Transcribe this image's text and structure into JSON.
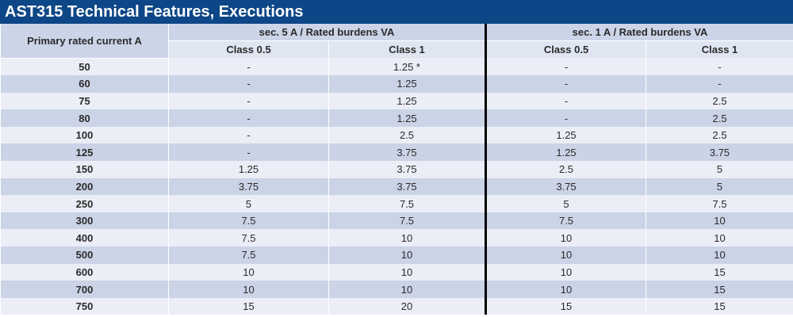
{
  "title": "AST315 Technical Features, Executions",
  "header": {
    "primary": "Primary rated current A",
    "group_5a": "sec. 5 A / Rated burdens VA",
    "group_1a": "sec. 1 A / Rated burdens VA",
    "class05_5a": "Class 0.5",
    "class1_5a": "Class 1",
    "class05_1a": "Class 0.5",
    "class1_1a": "Class 1"
  },
  "rows": [
    {
      "current": "50",
      "a5_c05": "-",
      "a5_c1": "1.25 *",
      "a1_c05": "-",
      "a1_c1": "-"
    },
    {
      "current": "60",
      "a5_c05": "-",
      "a5_c1": "1.25",
      "a1_c05": "-",
      "a1_c1": "-"
    },
    {
      "current": "75",
      "a5_c05": "-",
      "a5_c1": "1.25",
      "a1_c05": "-",
      "a1_c1": "2.5"
    },
    {
      "current": "80",
      "a5_c05": "-",
      "a5_c1": "1.25",
      "a1_c05": "-",
      "a1_c1": "2.5"
    },
    {
      "current": "100",
      "a5_c05": "-",
      "a5_c1": "2.5",
      "a1_c05": "1.25",
      "a1_c1": "2.5"
    },
    {
      "current": "125",
      "a5_c05": "-",
      "a5_c1": "3.75",
      "a1_c05": "1.25",
      "a1_c1": "3.75"
    },
    {
      "current": "150",
      "a5_c05": "1.25",
      "a5_c1": "3.75",
      "a1_c05": "2.5",
      "a1_c1": "5"
    },
    {
      "current": "200",
      "a5_c05": "3.75",
      "a5_c1": "3.75",
      "a1_c05": "3.75",
      "a1_c1": "5"
    },
    {
      "current": "250",
      "a5_c05": "5",
      "a5_c1": "7.5",
      "a1_c05": "5",
      "a1_c1": "7.5"
    },
    {
      "current": "300",
      "a5_c05": "7.5",
      "a5_c1": "7.5",
      "a1_c05": "7.5",
      "a1_c1": "10"
    },
    {
      "current": "400",
      "a5_c05": "7.5",
      "a5_c1": "10",
      "a1_c05": "10",
      "a1_c1": "10"
    },
    {
      "current": "500",
      "a5_c05": "7.5",
      "a5_c1": "10",
      "a1_c05": "10",
      "a1_c1": "10"
    },
    {
      "current": "600",
      "a5_c05": "10",
      "a5_c1": "10",
      "a1_c05": "10",
      "a1_c1": "15"
    },
    {
      "current": "700",
      "a5_c05": "10",
      "a5_c1": "10",
      "a1_c05": "10",
      "a1_c1": "15"
    },
    {
      "current": "750",
      "a5_c05": "15",
      "a5_c1": "20",
      "a1_c05": "15",
      "a1_c1": "15"
    }
  ]
}
